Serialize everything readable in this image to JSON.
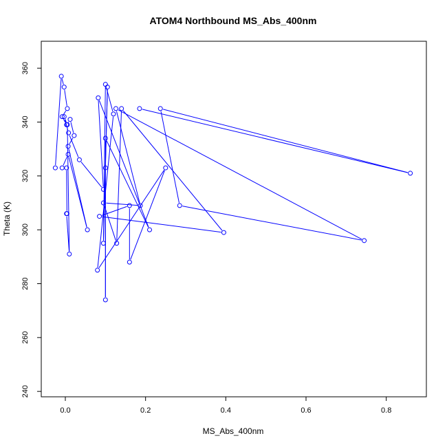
{
  "chart_data": {
    "type": "line",
    "title": "ATOM4 Northbound MS_Abs_400nm",
    "xlabel": "MS_Abs_400nm",
    "ylabel": "Theta (K)",
    "xlim": [
      -0.06,
      0.9
    ],
    "ylim": [
      238,
      370
    ],
    "x_ticks": [
      "0.0",
      "0.2",
      "0.4",
      "0.6",
      "0.8"
    ],
    "y_ticks": [
      "240",
      "260",
      "280",
      "300",
      "320",
      "340",
      "360"
    ],
    "grid": false,
    "legend": "none",
    "series_color": "#0000ff",
    "series": [
      {
        "points": [
          [
            -0.025,
            323
          ],
          [
            -0.01,
            357
          ],
          [
            -0.003,
            353
          ],
          [
            0.005,
            345
          ],
          [
            -0.008,
            342
          ],
          [
            0.003,
            339
          ],
          [
            0.012,
            341
          ],
          [
            0.022,
            335
          ],
          [
            0.007,
            331
          ],
          [
            0.055,
            300
          ],
          [
            0.007,
            328
          ],
          [
            -0.008,
            323
          ],
          [
            0.003,
            323
          ],
          [
            0.004,
            306
          ],
          [
            0.003,
            306
          ],
          [
            0.01,
            291
          ],
          [
            0.005,
            339
          ],
          [
            -0.003,
            342
          ],
          [
            0.008,
            336
          ],
          [
            0.035,
            326
          ],
          [
            0.095,
            315
          ],
          [
            0.082,
            349
          ],
          [
            0.21,
            300
          ],
          [
            0.1,
            334
          ],
          [
            0.1,
            274
          ],
          [
            0.1,
            323
          ],
          [
            0.105,
            353
          ],
          [
            0.095,
            295
          ],
          [
            0.1,
            354
          ],
          [
            0.12,
            343
          ],
          [
            0.08,
            285
          ],
          [
            0.25,
            323
          ],
          [
            0.16,
            288
          ],
          [
            0.16,
            309
          ],
          [
            0.085,
            305
          ],
          [
            0.395,
            299
          ],
          [
            0.14,
            345
          ],
          [
            0.128,
            295
          ],
          [
            0.095,
            310
          ],
          [
            0.187,
            309
          ],
          [
            0.126,
            345
          ],
          [
            0.745,
            296
          ],
          [
            0.285,
            309
          ],
          [
            0.237,
            345
          ],
          [
            0.86,
            321
          ],
          [
            0.185,
            345
          ]
        ]
      }
    ]
  }
}
